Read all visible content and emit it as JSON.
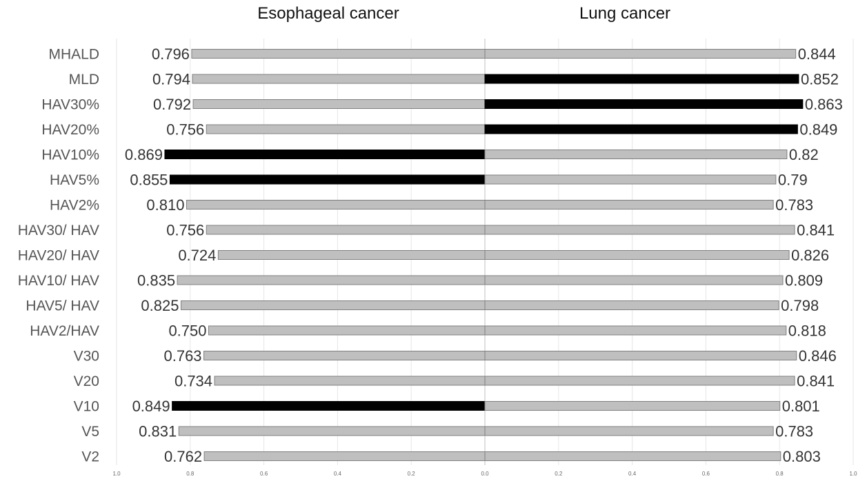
{
  "chart_data": {
    "type": "bar",
    "orientation": "horizontal-butterfly",
    "categories": [
      "MHALD",
      "MLD",
      "HAV30%",
      "HAV20%",
      "HAV10%",
      "HAV5%",
      "HAV2%",
      "HAV30/ HAV",
      "HAV20/ HAV",
      "HAV10/ HAV",
      "HAV5/ HAV",
      "HAV2/HAV",
      "V30",
      "V20",
      "V10",
      "V5",
      "V2"
    ],
    "panels": [
      {
        "name": "Esophageal cancer",
        "direction": "left",
        "values": [
          0.796,
          0.794,
          0.792,
          0.756,
          0.869,
          0.855,
          0.81,
          0.756,
          0.724,
          0.835,
          0.825,
          0.75,
          0.763,
          0.734,
          0.849,
          0.831,
          0.762
        ],
        "value_labels": [
          "0.796",
          "0.794",
          "0.792",
          "0.756",
          "0.869",
          "0.855",
          "0.810",
          "0.756",
          "0.724",
          "0.835",
          "0.825",
          "0.750",
          "0.763",
          "0.734",
          "0.849",
          "0.831",
          "0.762"
        ],
        "highlighted": [
          "HAV10%",
          "HAV5%",
          "V10"
        ]
      },
      {
        "name": "Lung cancer",
        "direction": "right",
        "values": [
          0.844,
          0.852,
          0.863,
          0.849,
          0.82,
          0.79,
          0.783,
          0.841,
          0.826,
          0.809,
          0.798,
          0.818,
          0.846,
          0.841,
          0.801,
          0.783,
          0.803
        ],
        "value_labels": [
          "0.844",
          "0.852",
          "0.863",
          "0.849",
          "0.82",
          "0.79",
          "0.783",
          "0.841",
          "0.826",
          "0.809",
          "0.798",
          "0.818",
          "0.846",
          "0.841",
          "0.801",
          "0.783",
          "0.803"
        ],
        "highlighted": [
          "MLD",
          "HAV30%",
          "HAV20%"
        ]
      }
    ],
    "x_ticks": [
      "1.0",
      "0.8",
      "0.6",
      "0.4",
      "0.2",
      "0.0",
      "0.2",
      "0.4",
      "0.6",
      "0.8",
      "1.0"
    ],
    "xlim": [
      0,
      1
    ],
    "grid": true,
    "colors": {
      "bar": "#bfbfbf",
      "highlight": "#000000",
      "bar_edge": "#7f7f7f"
    }
  }
}
